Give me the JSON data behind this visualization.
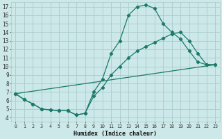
{
  "xlabel": "Humidex (Indice chaleur)",
  "bg_color": "#cce8e8",
  "grid_color": "#aacccc",
  "line_color": "#1a7a6a",
  "xlim": [
    -0.5,
    23.5
  ],
  "ylim": [
    3.5,
    17.5
  ],
  "xticks": [
    0,
    1,
    2,
    3,
    4,
    5,
    6,
    7,
    8,
    9,
    10,
    11,
    12,
    13,
    14,
    15,
    16,
    17,
    18,
    19,
    20,
    21,
    22,
    23
  ],
  "yticks": [
    4,
    5,
    6,
    7,
    8,
    9,
    10,
    11,
    12,
    13,
    14,
    15,
    16,
    17
  ],
  "line1_x": [
    0,
    1,
    2,
    3,
    4,
    5,
    6,
    7,
    8,
    9,
    10,
    11,
    12,
    13,
    14,
    15,
    16,
    17,
    18,
    19,
    20,
    21,
    22,
    23
  ],
  "line1_y": [
    6.8,
    6.1,
    5.6,
    5.0,
    4.9,
    4.8,
    4.8,
    4.3,
    4.5,
    7.0,
    8.5,
    11.5,
    13.0,
    16.0,
    17.0,
    17.2,
    16.8,
    15.0,
    14.0,
    13.2,
    11.8,
    10.5,
    10.2,
    10.2
  ],
  "line2_x": [
    0,
    1,
    2,
    3,
    4,
    5,
    6,
    7,
    8,
    9,
    10,
    11,
    12,
    13,
    14,
    15,
    16,
    17,
    18,
    19,
    20,
    21,
    22,
    23
  ],
  "line2_y": [
    6.8,
    6.1,
    5.6,
    5.0,
    4.9,
    4.8,
    4.8,
    4.3,
    4.5,
    6.5,
    7.5,
    9.0,
    10.0,
    11.0,
    11.8,
    12.3,
    12.8,
    13.3,
    13.8,
    14.0,
    13.0,
    11.5,
    10.2,
    10.2
  ],
  "line3_x": [
    0,
    23
  ],
  "line3_y": [
    6.8,
    10.2
  ],
  "marker_x1": [
    0,
    1,
    2,
    3,
    4,
    5,
    6,
    7,
    8,
    9,
    10,
    11,
    12,
    13,
    14,
    15,
    16,
    17,
    18,
    19,
    20,
    21,
    22,
    23
  ],
  "marker_y1": [
    6.8,
    6.1,
    5.6,
    5.0,
    4.9,
    4.8,
    4.8,
    4.3,
    4.5,
    7.0,
    8.5,
    11.5,
    13.0,
    16.0,
    17.0,
    17.2,
    16.8,
    15.0,
    14.0,
    13.2,
    11.8,
    10.5,
    10.2,
    10.2
  ],
  "marker_x2": [
    0,
    1,
    2,
    3,
    4,
    5,
    6,
    7,
    8,
    9,
    10,
    11,
    12,
    13,
    14,
    15,
    16,
    17,
    18,
    19,
    20,
    21,
    22,
    23
  ],
  "marker_y2": [
    6.8,
    6.1,
    5.6,
    5.0,
    4.9,
    4.8,
    4.8,
    4.3,
    4.5,
    6.5,
    7.5,
    9.0,
    10.0,
    11.0,
    11.8,
    12.3,
    12.8,
    13.3,
    13.8,
    14.0,
    13.0,
    11.5,
    10.2,
    10.2
  ]
}
